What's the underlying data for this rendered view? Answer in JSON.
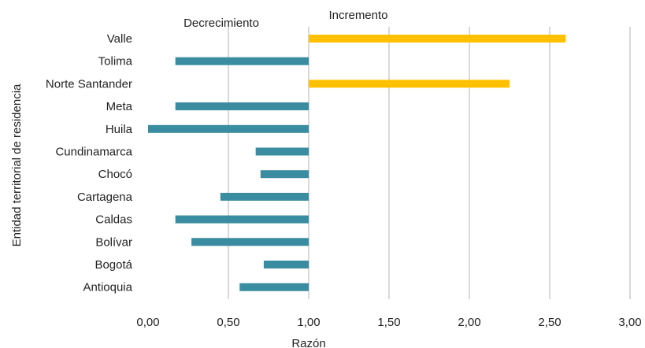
{
  "chart_data": {
    "type": "bar",
    "orientation": "horizontal",
    "categories": [
      "Antioquia",
      "Bogotá",
      "Bolívar",
      "Caldas",
      "Cartagena",
      "Chocó",
      "Cundinamarca",
      "Huila",
      "Meta",
      "Norte Santander",
      "Tolima",
      "Valle"
    ],
    "baseline": 1.0,
    "values": [
      0.57,
      0.72,
      0.27,
      0.17,
      0.45,
      0.7,
      0.67,
      0.0,
      0.17,
      2.25,
      0.17,
      2.6
    ],
    "colors": {
      "decrease": "#3a8ca0",
      "increase": "#ffc000"
    },
    "title": "",
    "xlabel": "Razón",
    "ylabel": "Entidad territorial de residencia",
    "xlim": [
      0,
      3
    ],
    "xticks": [
      "0,00",
      "0,50",
      "1,00",
      "1,50",
      "2,00",
      "2,50",
      "3,00"
    ],
    "grid": "vertical",
    "annotations": {
      "left": "Decrecimiento",
      "right": "Incremento"
    }
  }
}
